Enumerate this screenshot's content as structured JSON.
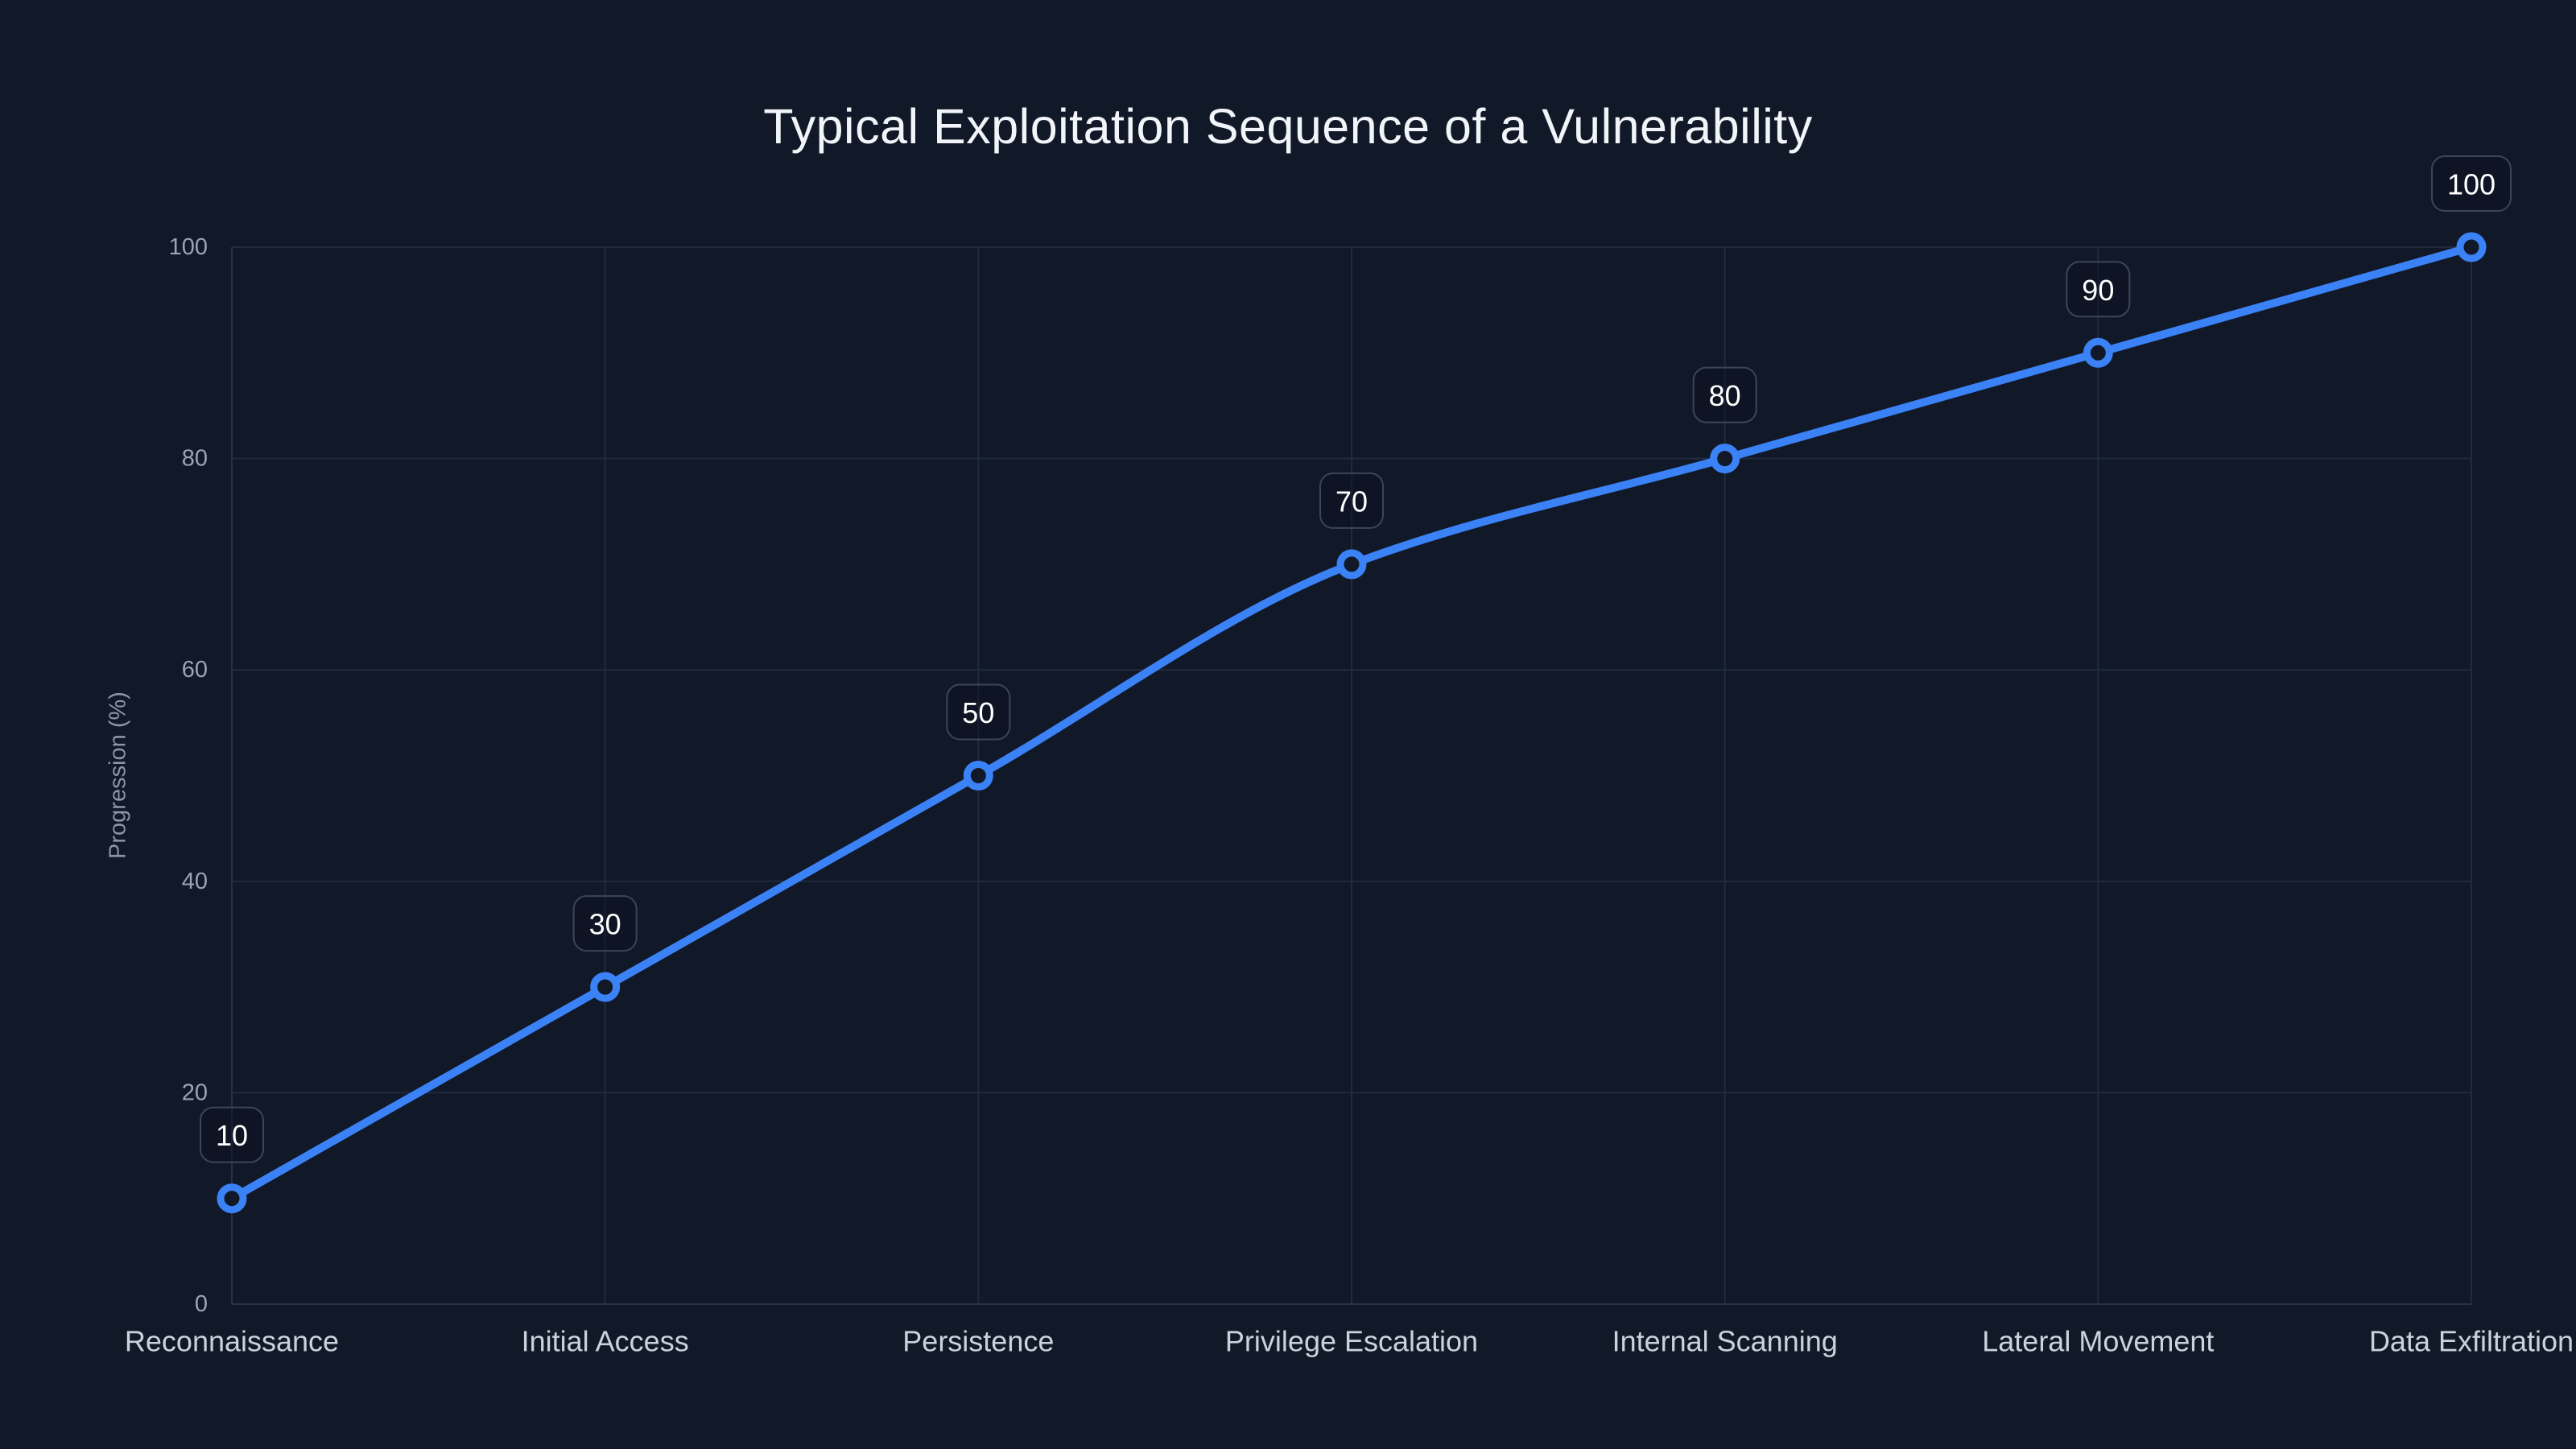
{
  "chart_data": {
    "type": "line",
    "title": "Typical Exploitation Sequence of a Vulnerability",
    "xlabel": "",
    "ylabel": "Progression (%)",
    "categories": [
      "Reconnaissance",
      "Initial Access",
      "Persistence",
      "Privilege Escalation",
      "Internal Scanning",
      "Lateral Movement",
      "Data Exfiltration"
    ],
    "values": [
      10,
      30,
      50,
      70,
      80,
      90,
      100
    ],
    "point_labels": [
      "10",
      "30",
      "50",
      "70",
      "80",
      "90",
      "100"
    ],
    "ylim": [
      0,
      100
    ],
    "yticks": [
      0,
      20,
      40,
      60,
      80,
      100
    ],
    "grid": true,
    "legend": "none",
    "curve": "monotone",
    "colors": {
      "background": "#111827",
      "line": "#3B82F6",
      "point_fill": "#111827",
      "point_stroke": "#3B82F6",
      "grid": "#202B40",
      "axis_line": "#26314A",
      "tick_text": "#9BA4B5",
      "category_text": "#CCD2DC",
      "title_text": "#F1F5F9",
      "axis_title_text": "#8C95A8",
      "label_box_fill": "rgba(10,16,30,0.45)",
      "label_box_border": "#3C4657",
      "label_box_text": "#FFFFFF"
    }
  }
}
